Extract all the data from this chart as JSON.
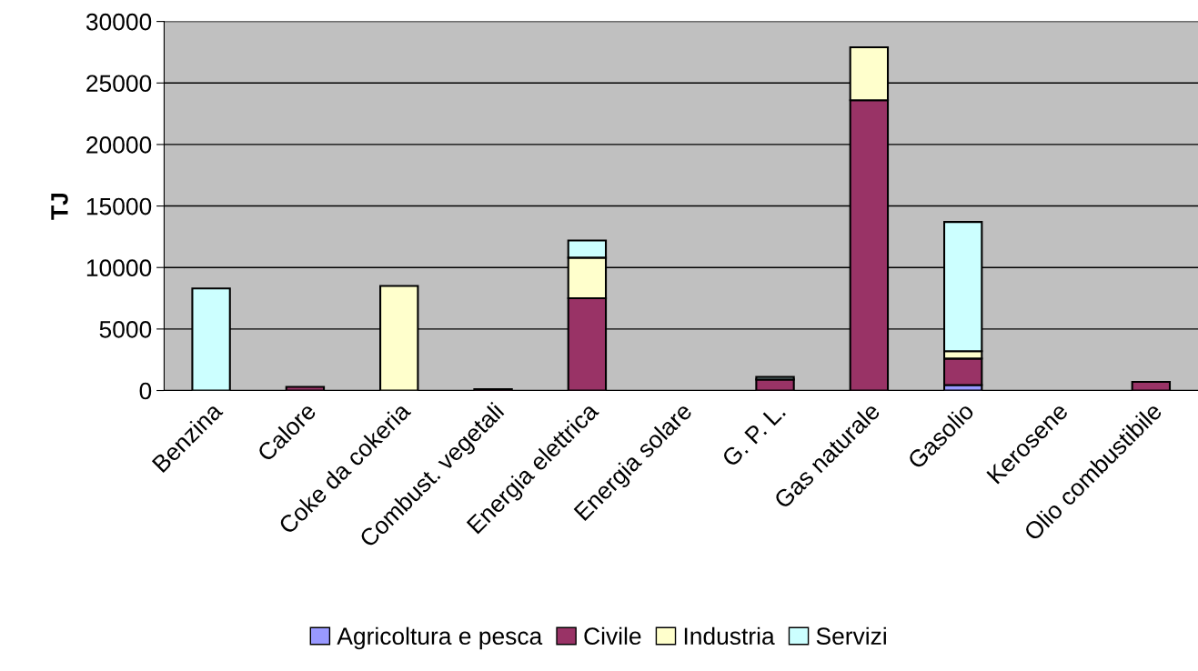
{
  "chart_data": {
    "type": "bar",
    "stacked": true,
    "ylabel": "TJ",
    "categories": [
      "Benzina",
      "Calore",
      "Coke da cokeria",
      "Combust. vegetali",
      "Energia elettrica",
      "Energia solare",
      "G. P. L.",
      "Gas naturale",
      "Gasolio",
      "Kerosene",
      "Olio combustibile"
    ],
    "series": [
      {
        "name": "Agricoltura e pesca",
        "color": "#9999ff",
        "values": [
          null,
          null,
          null,
          null,
          null,
          null,
          null,
          null,
          450,
          null,
          null
        ]
      },
      {
        "name": "Civile",
        "color": "#993366",
        "values": [
          null,
          300,
          null,
          100,
          7500,
          null,
          900,
          23600,
          2150,
          null,
          700
        ]
      },
      {
        "name": "Industria",
        "color": "#ffffcc",
        "values": [
          null,
          null,
          8500,
          null,
          3300,
          null,
          null,
          4300,
          600,
          null,
          null
        ]
      },
      {
        "name": "Servizi",
        "color": "#ccffff",
        "values": [
          8300,
          null,
          null,
          null,
          1400,
          null,
          200,
          null,
          10500,
          null,
          null
        ]
      }
    ],
    "ylim": [
      0,
      30000
    ],
    "yticks": [
      0,
      5000,
      10000,
      15000,
      20000,
      25000,
      30000
    ],
    "grid": "y",
    "legend": "bottom"
  }
}
